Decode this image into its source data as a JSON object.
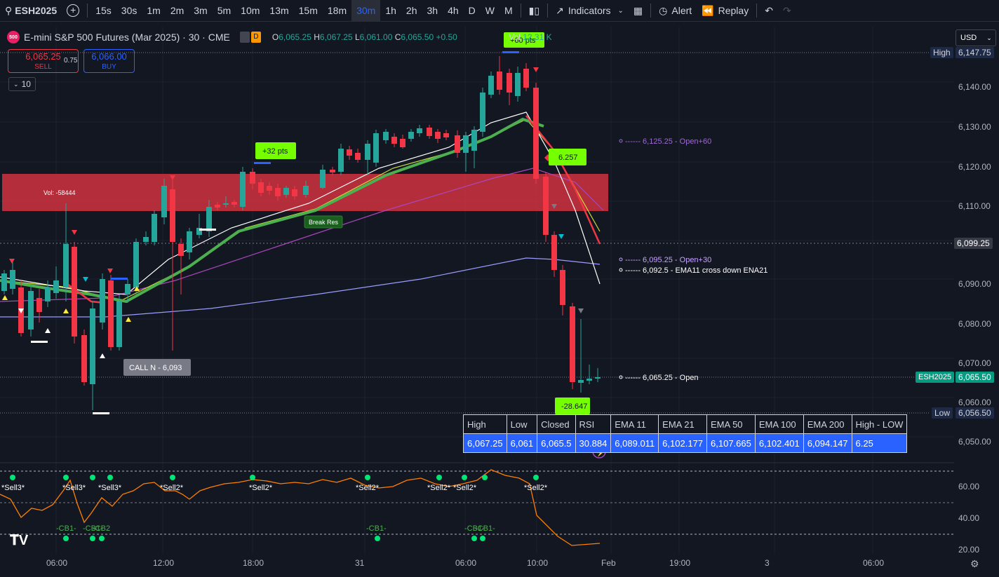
{
  "toolbar": {
    "symbol": "ESH2025",
    "intervals": [
      "15s",
      "30s",
      "1m",
      "2m",
      "3m",
      "5m",
      "10m",
      "13m",
      "15m",
      "18m",
      "30m",
      "1h",
      "2h",
      "3h",
      "4h",
      "D",
      "W",
      "M"
    ],
    "active_interval": "30m",
    "indicators_label": "Indicators",
    "alert_label": "Alert",
    "replay_label": "Replay"
  },
  "legend": {
    "title": "E-mini S&P 500 Futures (Mar 2025) · 30 · CME",
    "logo": "500",
    "badge": "D",
    "o_label": "O",
    "o": "6,065.25",
    "h_label": "H",
    "h": "6,067.25",
    "l_label": "L",
    "l": "6,061.00",
    "c_label": "C",
    "c": "6,065.50",
    "chg": "+0.50",
    "vol_label": "Vol",
    "vol": "12.31 K"
  },
  "trade": {
    "sell_price": "6,065.25",
    "sell_label": "SELL",
    "spread": "0.75",
    "buy_price": "6,066.00",
    "buy_label": "BUY",
    "qty": "10"
  },
  "currency": "USD",
  "price_axis": {
    "ticks": [
      "6,140.00",
      "6,130.00",
      "6,120.00",
      "6,110.00",
      "6,090.00",
      "6,080.00",
      "6,070.00",
      "6,060.00",
      "6,050.00"
    ],
    "high_label": "High",
    "high_value": "6,147.75",
    "crosshair_value": "6,099.25",
    "symbol_tag": "ESH2025",
    "last_value": "6,065.50",
    "low_label": "Low",
    "low_value": "6,056.50"
  },
  "rsi_axis": {
    "ticks": [
      "60.00",
      "40.00",
      "20.00"
    ]
  },
  "time_axis": {
    "ticks": [
      "06:00",
      "12:00",
      "18:00",
      "31",
      "06:00",
      "10:00",
      "Feb",
      "19:00",
      "3",
      "06:00"
    ]
  },
  "annotations": {
    "vol": "Vol: -58444",
    "break_res": "Break Res",
    "pts_32": "+32 pts",
    "pts_60": "+60 pts",
    "pts_neg": "-28.647",
    "pts_6257": "6.257",
    "call": "CALL N - 6,093",
    "level_open60": "6,125.25 - Open+60",
    "level_open30": "6,095.25 - Open+30",
    "level_ema": "6,092.5 - EMA11 cross down ENA21",
    "level_open": "6,065.25 - Open"
  },
  "rsi_labels": {
    "sell": [
      "*Sell3*",
      "*Sell3*",
      "*Sell3*",
      "*Sell2*",
      "*Sell2*",
      "*Sell2*",
      "*Sell2*",
      "*Sell2*",
      "*Sell2*"
    ],
    "cb": [
      "-CB1-",
      "-CB1-",
      "-CB2",
      "-CB1-",
      "-CB1-",
      "-CB1-"
    ]
  },
  "stats": {
    "headers": [
      "High",
      "Low",
      "Closed",
      "RSI",
      "EMA 11",
      "EMA 21",
      "EMA 50",
      "EMA 100",
      "EMA 200",
      "High - LOW"
    ],
    "values": [
      "6,067.25",
      "6,061",
      "6,065.5",
      "30.884",
      "6,089.011",
      "6,102.177",
      "6,107.665",
      "6,102.401",
      "6,094.147",
      "6.25"
    ]
  },
  "colors": {
    "up": "#26a69a",
    "down": "#f23645",
    "bg": "#131722",
    "accent": "#2962ff",
    "resistance_zone": "#f23645",
    "ema_white": "#ffffff",
    "ema_green": "#4caf50",
    "ema_yellow": "#cddc39",
    "ema_purple": "#ab47bc",
    "ema_lavender": "#9c9cff",
    "rsi": "#ff7f00"
  }
}
